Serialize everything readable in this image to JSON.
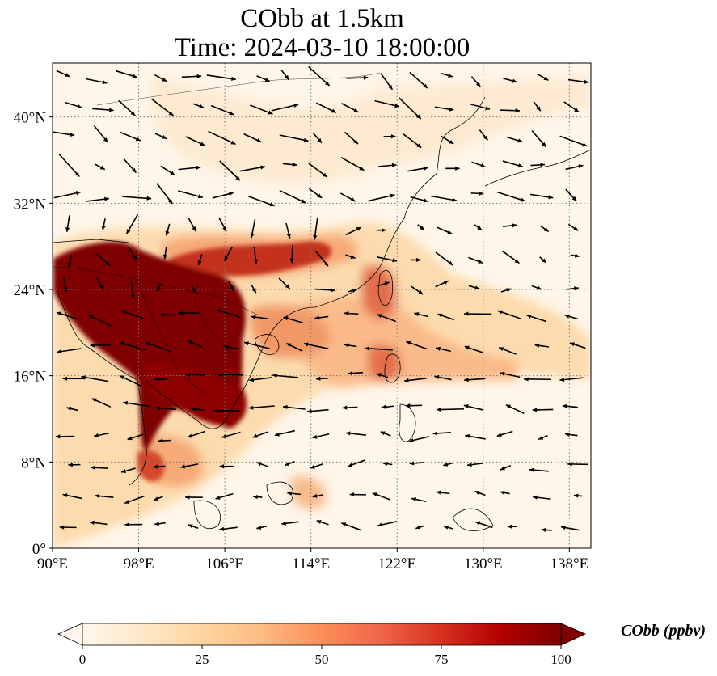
{
  "title_line1": "CObb at 1.5km",
  "title_line2": "Time: 2024-03-10 18:00:00",
  "map": {
    "lon_range": [
      90,
      140
    ],
    "lat_range": [
      0,
      45
    ],
    "lon_ticks": [
      {
        "value": 90,
        "label": "90°E"
      },
      {
        "value": 98,
        "label": "98°E"
      },
      {
        "value": 106,
        "label": "106°E"
      },
      {
        "value": 114,
        "label": "114°E"
      },
      {
        "value": 122,
        "label": "122°E"
      },
      {
        "value": 130,
        "label": "130°E"
      },
      {
        "value": 138,
        "label": "138°E"
      }
    ],
    "lat_ticks": [
      {
        "value": 0,
        "label": "0°"
      },
      {
        "value": 8,
        "label": "8°N"
      },
      {
        "value": 16,
        "label": "16°N"
      },
      {
        "value": 24,
        "label": "24°N"
      },
      {
        "value": 32,
        "label": "32°N"
      },
      {
        "value": 40,
        "label": "40°N"
      }
    ],
    "gridlines": "dotted",
    "colormap": "OrRd",
    "background_color": "#fff5e8",
    "plume_color": "#7f0000"
  },
  "colorbar": {
    "label": "CObb (ppbv)",
    "min": 0,
    "max": 100,
    "extend": "both",
    "ticks": [
      {
        "value": 0,
        "label": "0"
      },
      {
        "value": 25,
        "label": "25"
      },
      {
        "value": 50,
        "label": "50"
      },
      {
        "value": 75,
        "label": "75"
      },
      {
        "value": 100,
        "label": "100"
      }
    ],
    "colors": [
      "#fff7ec",
      "#fee8c8",
      "#fdd49e",
      "#fdbb84",
      "#fc8d59",
      "#ef6548",
      "#d7301f",
      "#b30000",
      "#7f0000"
    ]
  }
}
